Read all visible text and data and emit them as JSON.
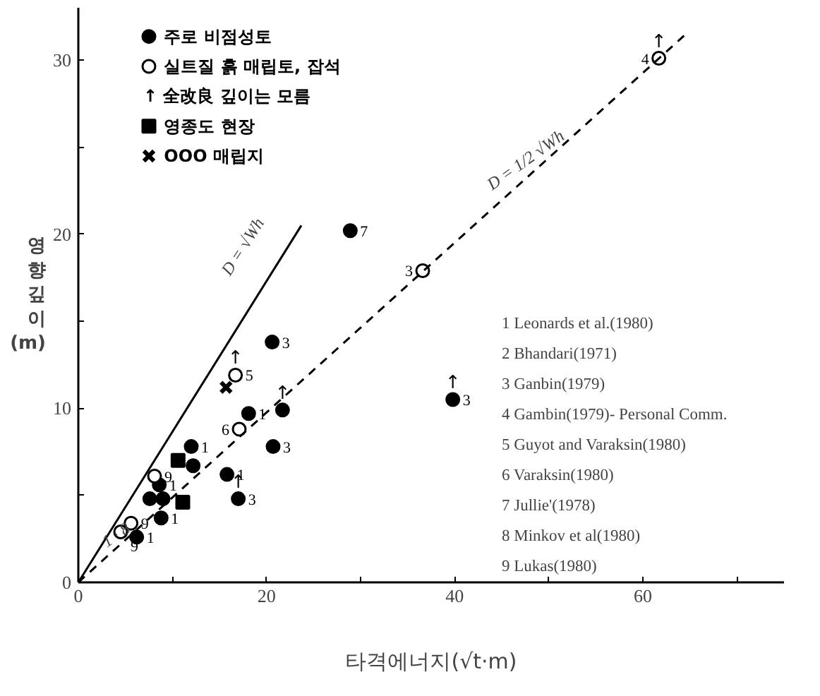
{
  "chart_data": {
    "type": "scatter",
    "xlabel": "타격에너지(√t·m)",
    "ylabel": "영향깊이 (m)",
    "xlim": [
      0,
      75
    ],
    "ylim": [
      0,
      33
    ],
    "xticks": [
      0,
      {
        "value": 10,
        "label": null
      },
      20,
      {
        "value": 30,
        "label": null
      },
      40,
      {
        "value": 50,
        "label": null
      },
      60,
      {
        "value": 70,
        "label": null
      }
    ],
    "yticks": [
      0,
      {
        "value": 5,
        "label": null
      },
      10,
      {
        "value": 15,
        "label": null
      },
      20,
      {
        "value": 25,
        "label": null
      },
      30
    ],
    "grid": false,
    "legend": "top left",
    "series": [
      {
        "name": "주로 비점성토",
        "color": "#000000",
        "marker": "circle",
        "x": [
          28.9,
          20.6,
          18.1,
          21.7,
          20.7,
          15.8,
          17.0,
          12.0,
          12.2,
          8.6,
          7.6,
          9.0,
          8.8,
          6.2,
          39.8
        ],
        "values": [
          20.2,
          13.8,
          9.7,
          9.9,
          7.8,
          6.2,
          4.8,
          7.8,
          6.7,
          5.6,
          4.8,
          4.8,
          3.7,
          2.6,
          10.5
        ]
      },
      {
        "name": "실트질 흙 매립토, 잡석",
        "color": "#ffffff",
        "marker": "circle",
        "x": [
          8.1,
          5.6,
          4.5,
          16.7,
          17.1,
          36.6,
          61.7
        ],
        "values": [
          6.1,
          3.4,
          2.9,
          11.9,
          8.8,
          17.9,
          30.1
        ]
      },
      {
        "name": "영종도 현장",
        "color": "#000000",
        "marker": "square",
        "x": [
          10.6,
          11.1
        ],
        "values": [
          7.0,
          4.6
        ]
      },
      {
        "name": "OOO 매립지",
        "color": "#000000",
        "marker": "cross",
        "x": [
          15.7
        ],
        "values": [
          11.2
        ]
      },
      {
        "type": "line",
        "color": "#000000",
        "line_style": "solid",
        "x": [
          0,
          23.7
        ],
        "values": [
          0,
          20.5
        ]
      },
      {
        "type": "line",
        "color": "#000000",
        "line_style": "dashed",
        "x": [
          0,
          64.8
        ],
        "values": [
          0,
          31.6
        ]
      }
    ],
    "annotations": [
      "D = √Wh",
      "D = 1/2 √Wh",
      "↑ 全改良 깊이는 모름",
      "1 · 8",
      {
        "text": "7",
        "x": 28.9,
        "y": 20.2
      },
      {
        "text": "3",
        "x": 20.6,
        "y": 13.8
      },
      {
        "text": "1",
        "x": 18.1,
        "y": 9.7
      },
      {
        "text": "3",
        "x": 20.7,
        "y": 7.8
      },
      {
        "text": "1",
        "x": 15.8,
        "y": 6.2
      },
      {
        "text": "3",
        "x": 17.0,
        "y": 4.8
      },
      {
        "text": "1",
        "x": 12.0,
        "y": 7.8
      },
      {
        "text": "1",
        "x": 8.8,
        "y": 3.7
      },
      {
        "text": "1",
        "x": 6.2,
        "y": 2.6
      },
      {
        "text": "1",
        "x": 8.6,
        "y": 5.6
      },
      {
        "text": "9",
        "x": 8.1,
        "y": 6.1
      },
      {
        "text": "9",
        "x": 5.6,
        "y": 3.4
      },
      {
        "text": "9",
        "x": 4.5,
        "y": 2.9
      },
      {
        "text": "5",
        "x": 16.7,
        "y": 11.9
      },
      {
        "text": "6",
        "x": 17.1,
        "y": 8.8
      },
      {
        "text": "3",
        "x": 36.6,
        "y": 17.9
      },
      {
        "text": "4",
        "x": 61.7,
        "y": 30.1
      },
      {
        "text": "3",
        "x": 39.8,
        "y": 10.5
      },
      {
        "text": "↑",
        "x": 16.7,
        "y": 11.9
      },
      {
        "text": "↑",
        "x": 21.7,
        "y": 9.9
      },
      {
        "text": "↑",
        "x": 17.0,
        "y": 4.8
      },
      {
        "text": "↑",
        "x": 39.8,
        "y": 10.5
      },
      {
        "text": "↑",
        "x": 61.7,
        "y": 30.1
      },
      "1 Leonards et al.(1980)",
      "2 Bhandari(1971)",
      "3 Ganbin(1979)",
      "4 Gambin(1979)- Personal Comm.",
      "5 Guyot and Varaksin(1980)",
      "6 Varaksin(1980)",
      "7 Jullie'(1978)",
      "8 Minkov et al(1980)",
      "9 Lukas(1980)"
    ]
  }
}
